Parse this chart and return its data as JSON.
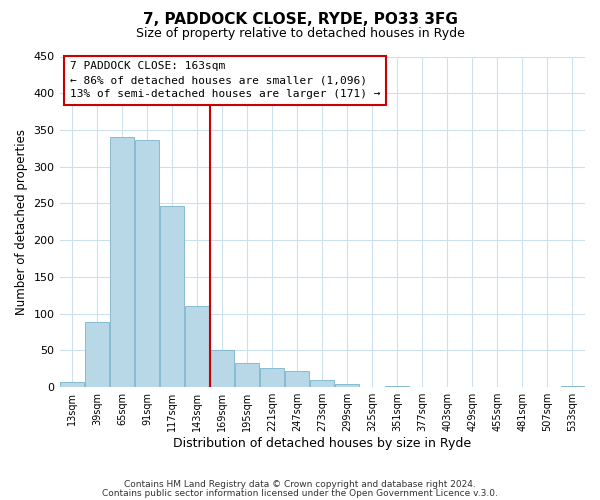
{
  "title": "7, PADDOCK CLOSE, RYDE, PO33 3FG",
  "subtitle": "Size of property relative to detached houses in Ryde",
  "xlabel": "Distribution of detached houses by size in Ryde",
  "ylabel": "Number of detached properties",
  "bar_labels": [
    "13sqm",
    "39sqm",
    "65sqm",
    "91sqm",
    "117sqm",
    "143sqm",
    "169sqm",
    "195sqm",
    "221sqm",
    "247sqm",
    "273sqm",
    "299sqm",
    "325sqm",
    "351sqm",
    "377sqm",
    "403sqm",
    "429sqm",
    "455sqm",
    "481sqm",
    "507sqm",
    "533sqm"
  ],
  "bar_values": [
    7,
    89,
    341,
    336,
    246,
    111,
    50,
    33,
    26,
    22,
    10,
    5,
    0,
    2,
    0,
    0,
    0,
    0,
    0,
    0,
    2
  ],
  "bar_color": "#b8d8e8",
  "bar_edge_color": "#7ab4cc",
  "vline_x": 5.5,
  "vline_color": "#cc0000",
  "annotation_title": "7 PADDOCK CLOSE: 163sqm",
  "annotation_line1": "← 86% of detached houses are smaller (1,096)",
  "annotation_line2": "13% of semi-detached houses are larger (171) →",
  "annotation_box_edge": "#cc0000",
  "ylim": [
    0,
    450
  ],
  "yticks": [
    0,
    50,
    100,
    150,
    200,
    250,
    300,
    350,
    400,
    450
  ],
  "footer1": "Contains HM Land Registry data © Crown copyright and database right 2024.",
  "footer2": "Contains public sector information licensed under the Open Government Licence v.3.0.",
  "background_color": "#ffffff",
  "grid_color": "#cce0ee"
}
